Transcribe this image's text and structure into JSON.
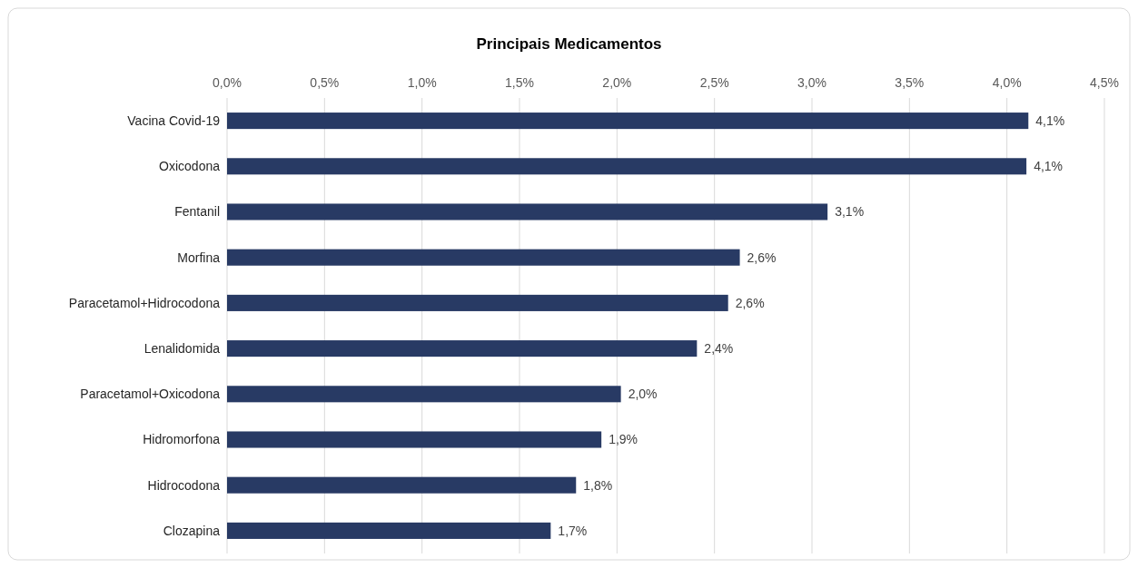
{
  "chart_data": {
    "type": "bar",
    "orientation": "horizontal",
    "title": "Principais Medicamentos",
    "categories": [
      "Vacina Covid-19",
      "Oxicodona",
      "Fentanil",
      "Morfina",
      "Paracetamol+Hidrocodona",
      "Lenalidomida",
      "Paracetamol+Oxicodona",
      "Hidromorfona",
      "Hidrocodona",
      "Clozapina"
    ],
    "values": [
      4.11,
      4.1,
      3.08,
      2.63,
      2.57,
      2.41,
      2.02,
      1.92,
      1.79,
      1.66
    ],
    "value_labels": [
      "4,1%",
      "4,1%",
      "3,1%",
      "2,6%",
      "2,6%",
      "2,4%",
      "2,0%",
      "1,9%",
      "1,8%",
      "1,7%"
    ],
    "color": "#283a64",
    "xlim": [
      0,
      4.5
    ],
    "xticks": [
      {
        "value": 0,
        "label": "0,0%"
      },
      {
        "value": 0.5,
        "label": "0,5%"
      },
      {
        "value": 1,
        "label": "1,0%"
      },
      {
        "value": 1.5,
        "label": "1,5%"
      },
      {
        "value": 2,
        "label": "2,0%"
      },
      {
        "value": 2.5,
        "label": "2,5%"
      },
      {
        "value": 3,
        "label": "3,0%"
      },
      {
        "value": 3.5,
        "label": "3,5%"
      },
      {
        "value": 4,
        "label": "4,0%"
      },
      {
        "value": 4.5,
        "label": "4,5%"
      }
    ],
    "grid": "x"
  }
}
